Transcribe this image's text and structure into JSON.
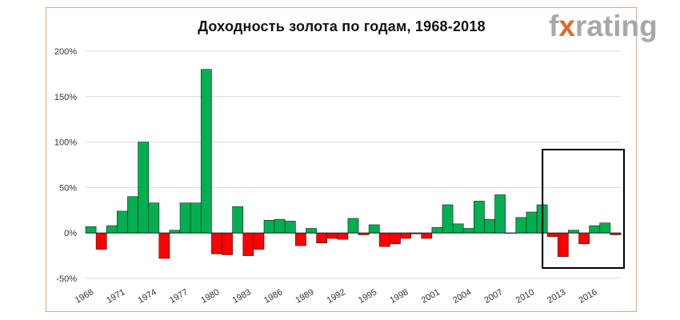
{
  "watermark": {
    "part1": "f",
    "part2": "x",
    "part3": "rating"
  },
  "colors": {
    "positive": "#00b050",
    "negative": "#ff0000",
    "frame": "#e8a36a",
    "grid": "#d9d9d9",
    "highlight": "#000000",
    "watermark": "#a8a8a8",
    "watermark_accent": "#e06a2a"
  },
  "chart_data": {
    "type": "bar",
    "title": "Доходность золота по годам, 1968-2018",
    "xlabel": "",
    "ylabel": "",
    "ylim": [
      -50,
      200
    ],
    "yticks": [
      -50,
      0,
      50,
      100,
      150,
      200
    ],
    "ytick_labels": [
      "-50%",
      "0%",
      "50%",
      "100%",
      "150%",
      "200%"
    ],
    "xtick_labels": [
      "1968",
      "1971",
      "1974",
      "1977",
      "1980",
      "1983",
      "1986",
      "1989",
      "1992",
      "1995",
      "1998",
      "2001",
      "2004",
      "2007",
      "2010",
      "2013",
      "2016"
    ],
    "grid": true,
    "highlight_range": [
      2012,
      2018
    ],
    "categories": [
      1968,
      1969,
      1970,
      1971,
      1972,
      1973,
      1974,
      1975,
      1976,
      1977,
      1978,
      1979,
      1980,
      1981,
      1982,
      1983,
      1984,
      1985,
      1986,
      1987,
      1988,
      1989,
      1990,
      1991,
      1992,
      1993,
      1994,
      1995,
      1996,
      1997,
      1998,
      1999,
      2000,
      2001,
      2002,
      2003,
      2004,
      2005,
      2006,
      2007,
      2008,
      2009,
      2010,
      2011,
      2012,
      2013,
      2014,
      2015,
      2016,
      2017,
      2018
    ],
    "values": [
      7,
      -18,
      8,
      24,
      40,
      100,
      33,
      -28,
      3,
      33,
      33,
      180,
      -23,
      -24,
      29,
      -25,
      -18,
      14,
      15,
      13,
      -14,
      5,
      -11,
      -6,
      -7,
      16,
      -2,
      9,
      -15,
      -12,
      -6,
      -1,
      -6,
      6,
      31,
      10,
      5,
      35,
      15,
      42,
      0,
      17,
      23,
      31,
      -4,
      -26,
      3,
      -12,
      8,
      11,
      -2
    ]
  }
}
